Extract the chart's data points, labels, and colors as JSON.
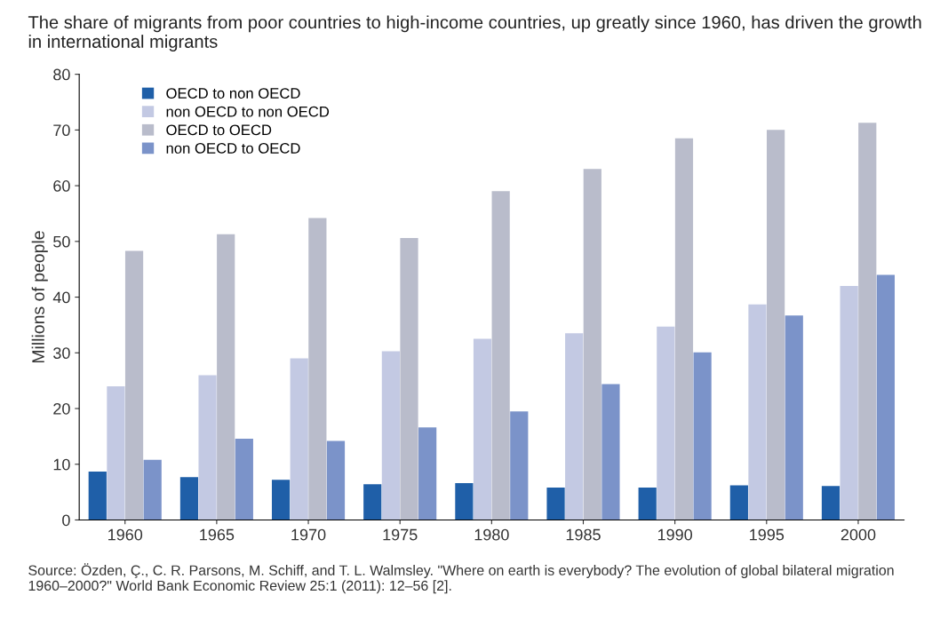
{
  "chart_data": {
    "type": "bar",
    "title": "The share of migrants from poor countries to high-income countries, up greatly since 1960, has driven the growth in international migrants",
    "ylabel": "Millions of people",
    "categories": [
      "1960",
      "1965",
      "1970",
      "1975",
      "1980",
      "1985",
      "1990",
      "1995",
      "2000"
    ],
    "series": [
      {
        "name": "OECD to non OECD",
        "color": "#1f5fa8",
        "values": [
          8.7,
          7.7,
          7.2,
          6.4,
          6.6,
          5.8,
          5.8,
          6.2,
          6.1
        ]
      },
      {
        "name": "non OECD to non OECD",
        "color": "#c3c9e3",
        "values": [
          24,
          26,
          29,
          30.3,
          32.5,
          33.5,
          34.7,
          38.7,
          42
        ]
      },
      {
        "name": "OECD to OECD",
        "color": "#b9bccb",
        "values": [
          48.3,
          51.3,
          54.2,
          50.6,
          59,
          63,
          68.5,
          70,
          71.3
        ]
      },
      {
        "name": "non OECD to OECD",
        "color": "#7b93c9",
        "values": [
          10.8,
          14.6,
          14.2,
          16.6,
          19.5,
          24.4,
          30.1,
          36.7,
          44
        ]
      }
    ],
    "ylim": [
      0,
      80
    ],
    "yticks": [
      0,
      10,
      20,
      30,
      40,
      50,
      60,
      70,
      80
    ],
    "grid": false,
    "legend": "top left",
    "annotations": [
      "Source: Özden, Ç., C. R. Parsons, M. Schiff, and T. L. Walmsley. \"Where on earth is everybody? The evolution of global bilateral migration 1960–2000?\" World Bank Economic Review 25:1 (2011): 12–56 [2]."
    ]
  }
}
